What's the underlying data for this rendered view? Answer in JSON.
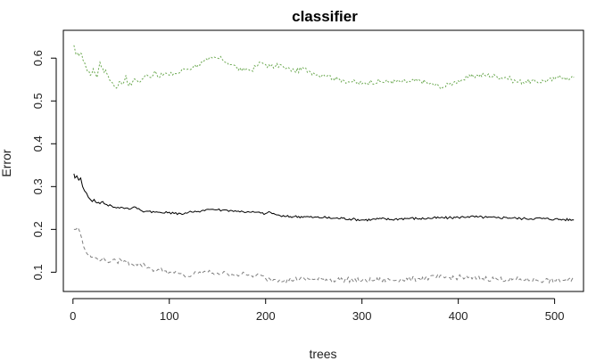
{
  "chart_data": {
    "type": "line",
    "title": "classifier",
    "xlabel": "trees",
    "ylabel": "Error",
    "xlim": [
      -10,
      530
    ],
    "ylim": [
      0.055,
      0.665
    ],
    "x_ticks": [
      0,
      100,
      200,
      300,
      400,
      500
    ],
    "y_ticks": [
      0.1,
      0.2,
      0.3,
      0.4,
      0.5,
      0.6
    ],
    "grid": false,
    "legend": "none",
    "series": [
      {
        "style": "dotted",
        "color": "#6aa84f",
        "points": [
          [
            1,
            0.63
          ],
          [
            3,
            0.61
          ],
          [
            6,
            0.605
          ],
          [
            9,
            0.61
          ],
          [
            12,
            0.59
          ],
          [
            15,
            0.57
          ],
          [
            18,
            0.56
          ],
          [
            21,
            0.575
          ],
          [
            25,
            0.555
          ],
          [
            28,
            0.59
          ],
          [
            31,
            0.575
          ],
          [
            35,
            0.565
          ],
          [
            40,
            0.545
          ],
          [
            45,
            0.53
          ],
          [
            48,
            0.545
          ],
          [
            52,
            0.54
          ],
          [
            55,
            0.56
          ],
          [
            58,
            0.535
          ],
          [
            62,
            0.545
          ],
          [
            65,
            0.55
          ],
          [
            70,
            0.545
          ],
          [
            75,
            0.56
          ],
          [
            80,
            0.555
          ],
          [
            85,
            0.57
          ],
          [
            90,
            0.555
          ],
          [
            95,
            0.565
          ],
          [
            100,
            0.56
          ],
          [
            105,
            0.565
          ],
          [
            110,
            0.565
          ],
          [
            115,
            0.575
          ],
          [
            120,
            0.575
          ],
          [
            125,
            0.58
          ],
          [
            130,
            0.585
          ],
          [
            135,
            0.59
          ],
          [
            140,
            0.595
          ],
          [
            145,
            0.6
          ],
          [
            150,
            0.6
          ],
          [
            155,
            0.597
          ],
          [
            160,
            0.59
          ],
          [
            165,
            0.585
          ],
          [
            170,
            0.578
          ],
          [
            175,
            0.57
          ],
          [
            180,
            0.575
          ],
          [
            185,
            0.572
          ],
          [
            190,
            0.58
          ],
          [
            195,
            0.59
          ],
          [
            200,
            0.585
          ],
          [
            205,
            0.58
          ],
          [
            210,
            0.58
          ],
          [
            215,
            0.585
          ],
          [
            220,
            0.575
          ],
          [
            225,
            0.575
          ],
          [
            230,
            0.57
          ],
          [
            240,
            0.575
          ],
          [
            245,
            0.57
          ],
          [
            250,
            0.565
          ],
          [
            255,
            0.56
          ],
          [
            260,
            0.562
          ],
          [
            265,
            0.56
          ],
          [
            270,
            0.553
          ],
          [
            275,
            0.55
          ],
          [
            280,
            0.55
          ],
          [
            285,
            0.545
          ],
          [
            290,
            0.545
          ],
          [
            300,
            0.54
          ],
          [
            310,
            0.545
          ],
          [
            320,
            0.545
          ],
          [
            330,
            0.545
          ],
          [
            340,
            0.545
          ],
          [
            350,
            0.545
          ],
          [
            360,
            0.548
          ],
          [
            370,
            0.54
          ],
          [
            380,
            0.535
          ],
          [
            385,
            0.532
          ],
          [
            390,
            0.538
          ],
          [
            395,
            0.543
          ],
          [
            400,
            0.547
          ],
          [
            405,
            0.55
          ],
          [
            410,
            0.555
          ],
          [
            420,
            0.56
          ],
          [
            430,
            0.56
          ],
          [
            440,
            0.557
          ],
          [
            450,
            0.555
          ],
          [
            455,
            0.55
          ],
          [
            460,
            0.545
          ],
          [
            470,
            0.545
          ],
          [
            480,
            0.545
          ],
          [
            490,
            0.547
          ],
          [
            500,
            0.55
          ],
          [
            505,
            0.56
          ],
          [
            510,
            0.555
          ],
          [
            515,
            0.55
          ],
          [
            520,
            0.555
          ]
        ]
      },
      {
        "style": "solid",
        "color": "#000000",
        "points": [
          [
            1,
            0.33
          ],
          [
            2,
            0.32
          ],
          [
            4,
            0.325
          ],
          [
            6,
            0.315
          ],
          [
            8,
            0.32
          ],
          [
            10,
            0.3
          ],
          [
            12,
            0.29
          ],
          [
            14,
            0.285
          ],
          [
            16,
            0.275
          ],
          [
            18,
            0.27
          ],
          [
            20,
            0.265
          ],
          [
            22,
            0.27
          ],
          [
            25,
            0.262
          ],
          [
            28,
            0.26
          ],
          [
            31,
            0.265
          ],
          [
            35,
            0.258
          ],
          [
            40,
            0.255
          ],
          [
            45,
            0.25
          ],
          [
            50,
            0.252
          ],
          [
            55,
            0.25
          ],
          [
            60,
            0.248
          ],
          [
            65,
            0.252
          ],
          [
            70,
            0.245
          ],
          [
            75,
            0.242
          ],
          [
            80,
            0.243
          ],
          [
            85,
            0.24
          ],
          [
            90,
            0.24
          ],
          [
            95,
            0.238
          ],
          [
            100,
            0.24
          ],
          [
            105,
            0.237
          ],
          [
            110,
            0.238
          ],
          [
            115,
            0.236
          ],
          [
            120,
            0.24
          ],
          [
            125,
            0.24
          ],
          [
            130,
            0.242
          ],
          [
            135,
            0.245
          ],
          [
            140,
            0.247
          ],
          [
            145,
            0.247
          ],
          [
            150,
            0.246
          ],
          [
            155,
            0.245
          ],
          [
            160,
            0.245
          ],
          [
            165,
            0.244
          ],
          [
            170,
            0.242
          ],
          [
            175,
            0.243
          ],
          [
            180,
            0.24
          ],
          [
            185,
            0.24
          ],
          [
            190,
            0.24
          ],
          [
            195,
            0.238
          ],
          [
            200,
            0.237
          ],
          [
            205,
            0.24
          ],
          [
            210,
            0.235
          ],
          [
            215,
            0.232
          ],
          [
            220,
            0.23
          ],
          [
            230,
            0.23
          ],
          [
            240,
            0.23
          ],
          [
            250,
            0.228
          ],
          [
            260,
            0.228
          ],
          [
            270,
            0.226
          ],
          [
            280,
            0.226
          ],
          [
            290,
            0.224
          ],
          [
            300,
            0.222
          ],
          [
            310,
            0.223
          ],
          [
            320,
            0.225
          ],
          [
            330,
            0.223
          ],
          [
            340,
            0.225
          ],
          [
            350,
            0.226
          ],
          [
            360,
            0.225
          ],
          [
            370,
            0.226
          ],
          [
            380,
            0.227
          ],
          [
            390,
            0.227
          ],
          [
            400,
            0.228
          ],
          [
            410,
            0.23
          ],
          [
            420,
            0.229
          ],
          [
            430,
            0.228
          ],
          [
            440,
            0.227
          ],
          [
            450,
            0.228
          ],
          [
            460,
            0.226
          ],
          [
            470,
            0.225
          ],
          [
            480,
            0.226
          ],
          [
            490,
            0.225
          ],
          [
            500,
            0.224
          ],
          [
            510,
            0.223
          ],
          [
            520,
            0.222
          ]
        ]
      },
      {
        "style": "dashed",
        "color": "#808080",
        "points": [
          [
            1,
            0.2
          ],
          [
            3,
            0.2
          ],
          [
            5,
            0.205
          ],
          [
            7,
            0.195
          ],
          [
            9,
            0.18
          ],
          [
            11,
            0.16
          ],
          [
            13,
            0.15
          ],
          [
            16,
            0.14
          ],
          [
            20,
            0.135
          ],
          [
            25,
            0.132
          ],
          [
            30,
            0.13
          ],
          [
            35,
            0.128
          ],
          [
            40,
            0.125
          ],
          [
            45,
            0.125
          ],
          [
            50,
            0.128
          ],
          [
            55,
            0.125
          ],
          [
            60,
            0.12
          ],
          [
            65,
            0.12
          ],
          [
            70,
            0.118
          ],
          [
            75,
            0.115
          ],
          [
            80,
            0.11
          ],
          [
            85,
            0.105
          ],
          [
            90,
            0.105
          ],
          [
            95,
            0.103
          ],
          [
            100,
            0.1
          ],
          [
            105,
            0.098
          ],
          [
            110,
            0.097
          ],
          [
            115,
            0.093
          ],
          [
            120,
            0.09
          ],
          [
            125,
            0.095
          ],
          [
            130,
            0.098
          ],
          [
            135,
            0.1
          ],
          [
            140,
            0.1
          ],
          [
            145,
            0.098
          ],
          [
            150,
            0.098
          ],
          [
            155,
            0.097
          ],
          [
            160,
            0.097
          ],
          [
            165,
            0.095
          ],
          [
            170,
            0.094
          ],
          [
            175,
            0.095
          ],
          [
            180,
            0.094
          ],
          [
            185,
            0.093
          ],
          [
            190,
            0.092
          ],
          [
            195,
            0.093
          ],
          [
            200,
            0.085
          ],
          [
            205,
            0.083
          ],
          [
            210,
            0.083
          ],
          [
            220,
            0.082
          ],
          [
            230,
            0.083
          ],
          [
            240,
            0.085
          ],
          [
            250,
            0.083
          ],
          [
            260,
            0.084
          ],
          [
            270,
            0.082
          ],
          [
            280,
            0.083
          ],
          [
            290,
            0.082
          ],
          [
            300,
            0.08
          ],
          [
            310,
            0.081
          ],
          [
            320,
            0.082
          ],
          [
            330,
            0.082
          ],
          [
            340,
            0.083
          ],
          [
            350,
            0.084
          ],
          [
            360,
            0.085
          ],
          [
            370,
            0.087
          ],
          [
            380,
            0.088
          ],
          [
            390,
            0.087
          ],
          [
            400,
            0.088
          ],
          [
            410,
            0.087
          ],
          [
            420,
            0.085
          ],
          [
            430,
            0.085
          ],
          [
            440,
            0.084
          ],
          [
            450,
            0.083
          ],
          [
            460,
            0.083
          ],
          [
            470,
            0.082
          ],
          [
            480,
            0.082
          ],
          [
            490,
            0.081
          ],
          [
            500,
            0.08
          ],
          [
            510,
            0.081
          ],
          [
            520,
            0.08
          ]
        ]
      }
    ]
  }
}
